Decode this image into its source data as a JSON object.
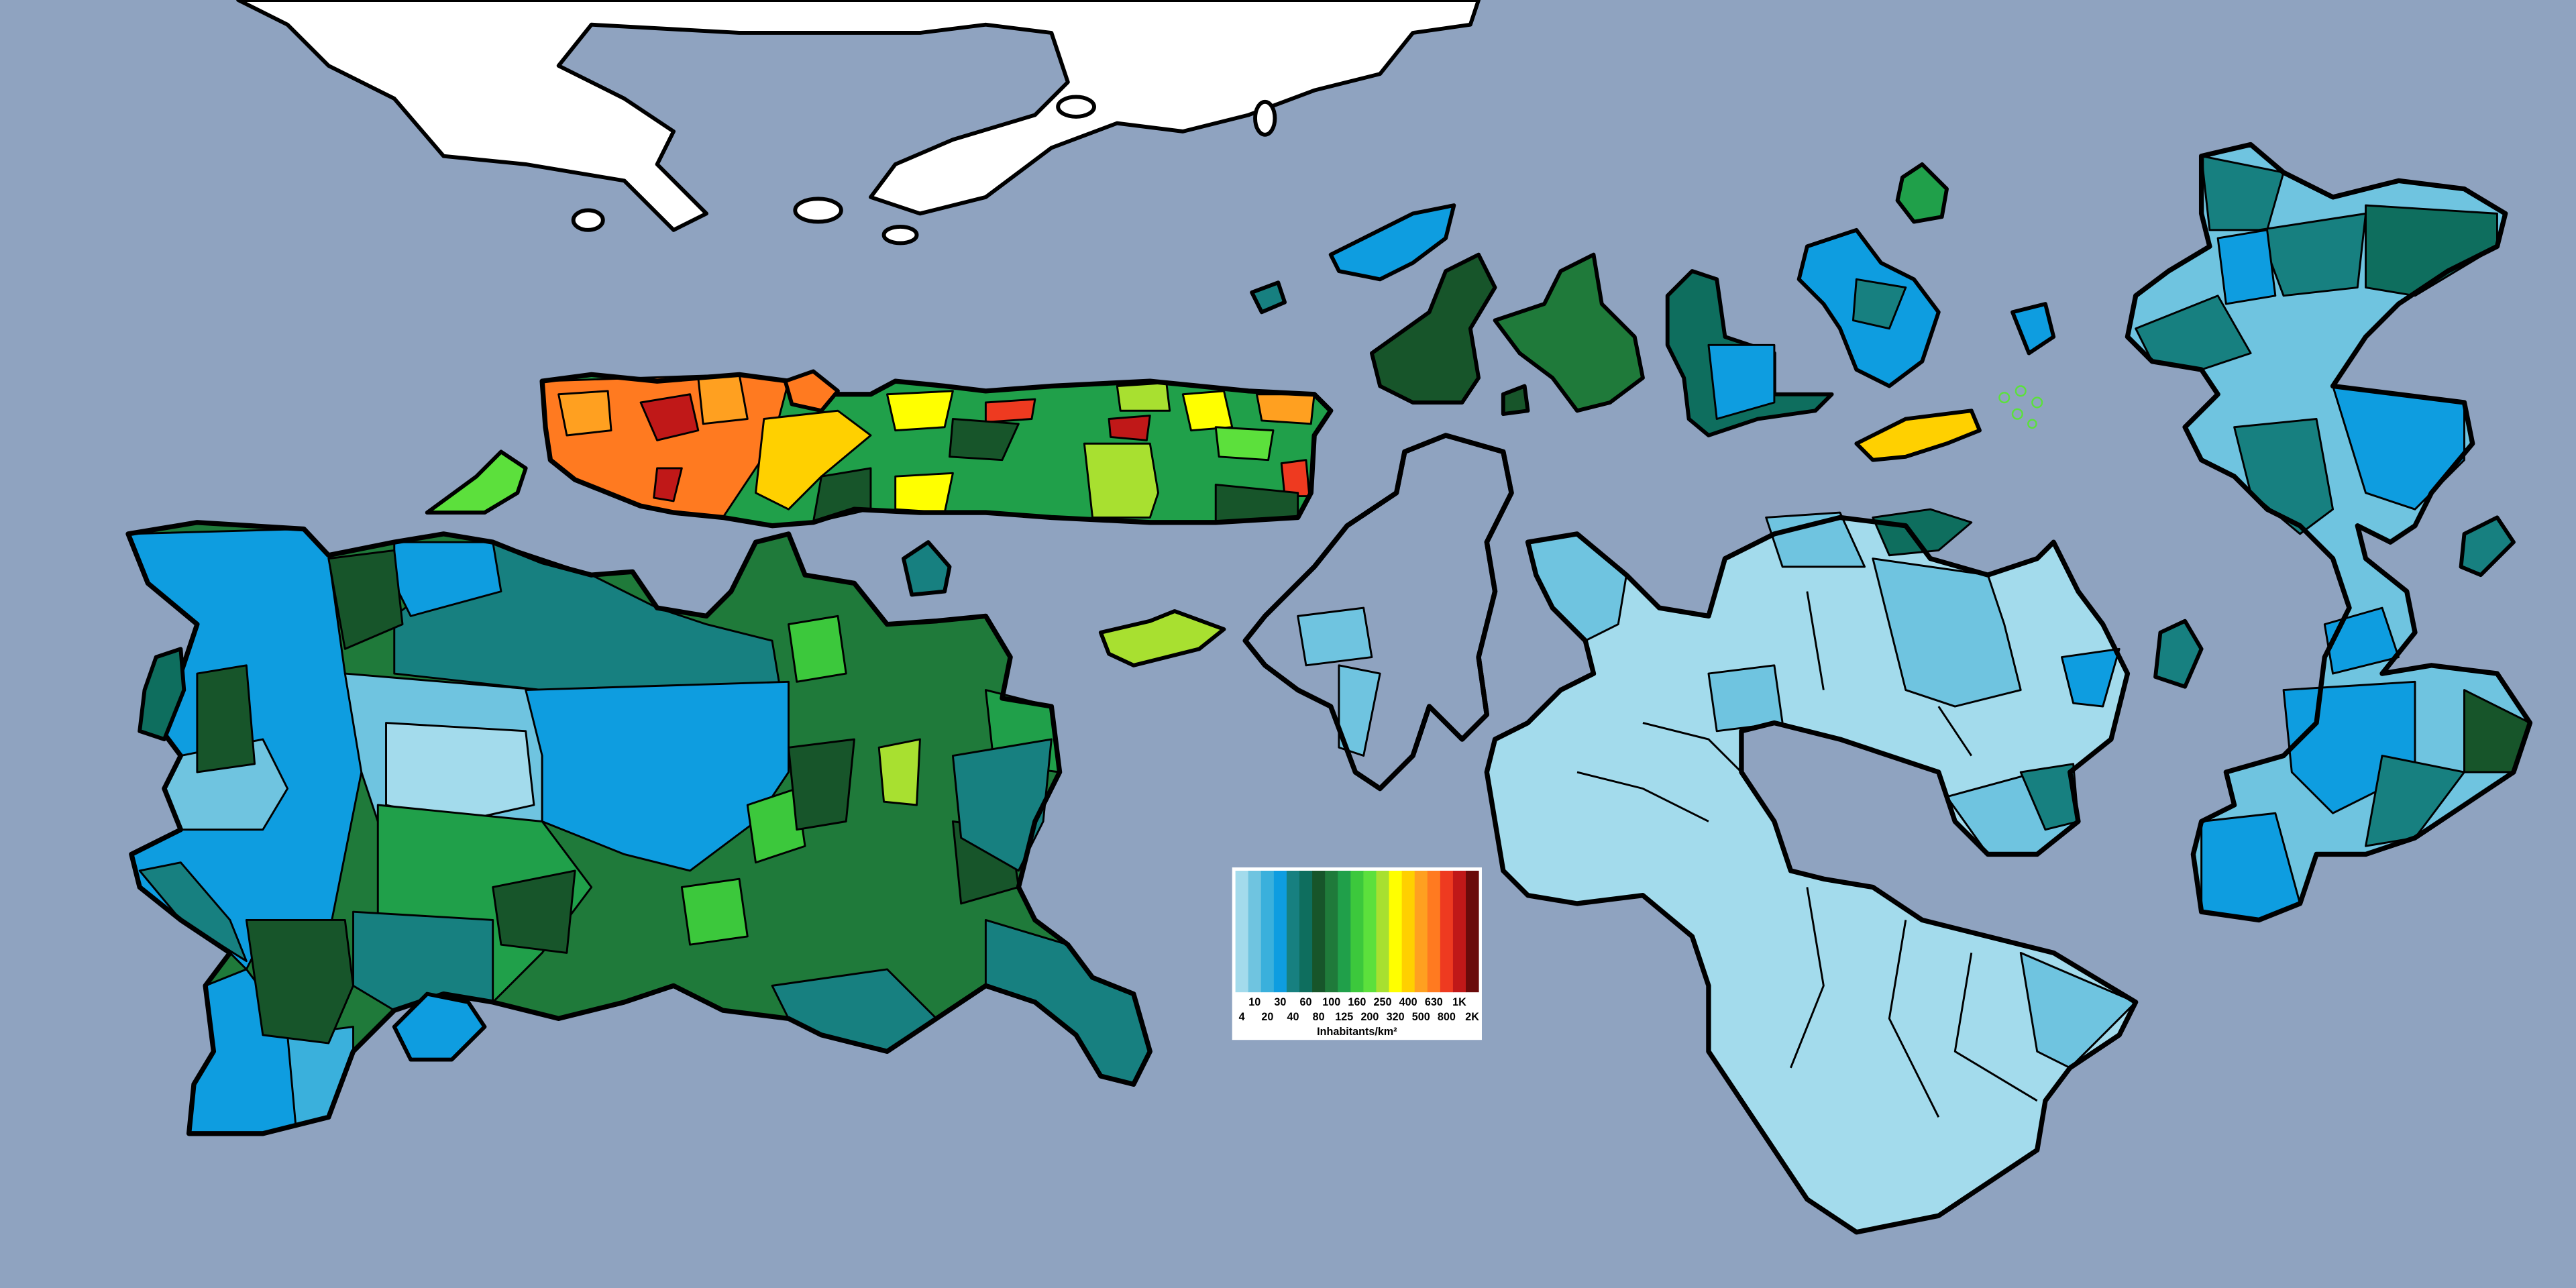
{
  "legend": {
    "title": "Inhabitants/km²",
    "labels": [
      "4",
      "10",
      "20",
      "30",
      "40",
      "60",
      "80",
      "100",
      "125",
      "160",
      "200",
      "250",
      "320",
      "400",
      "500",
      "630",
      "800",
      "1K",
      "2K"
    ],
    "colors": [
      "#a3dbec",
      "#6fc4e0",
      "#3ab0dc",
      "#0e9de0",
      "#178080",
      "#0e6e5e",
      "#17552a",
      "#1f7a3a",
      "#20a04a",
      "#3cc83c",
      "#5ce03c",
      "#a8e030",
      "#ffff00",
      "#ffd000",
      "#ffa020",
      "#ff7a20",
      "#ee3a20",
      "#c01818",
      "#6a0a0a"
    ]
  }
}
